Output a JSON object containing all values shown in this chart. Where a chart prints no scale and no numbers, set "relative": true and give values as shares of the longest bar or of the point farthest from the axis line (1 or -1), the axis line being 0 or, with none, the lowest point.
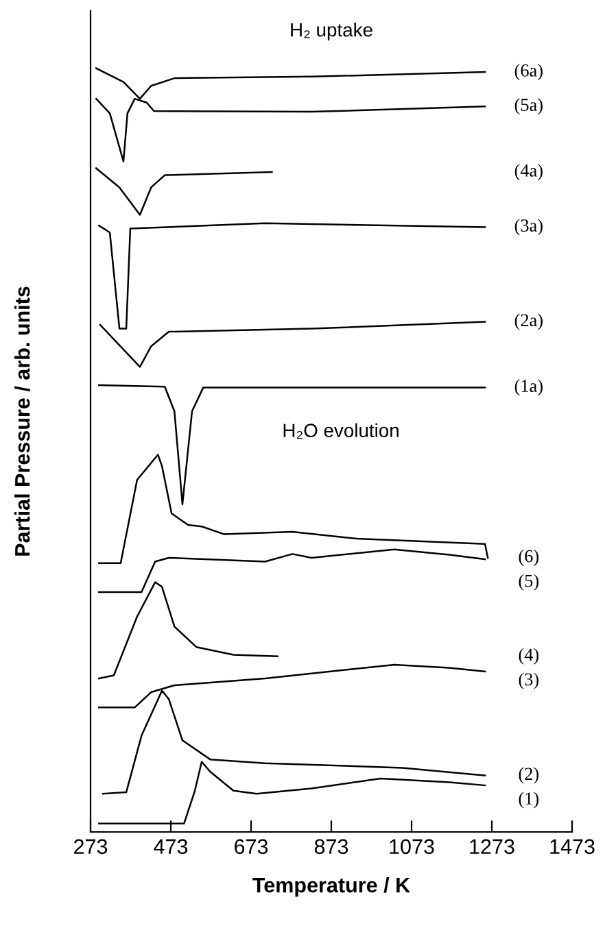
{
  "chart_data": {
    "type": "line",
    "relative": true,
    "xlabel": "Temperature / K",
    "ylabel": "Partial Pressure / arb. units",
    "xlim": [
      273,
      1473
    ],
    "xticks": [
      273,
      473,
      673,
      873,
      1073,
      1273,
      1473
    ],
    "grid": false,
    "legend": false,
    "marker": "none",
    "line_style": "solid",
    "annotations": [
      "H₂ uptake",
      "H₂O evolution"
    ],
    "series": [
      {
        "name": "(6a)",
        "color": "#000000",
        "x": [
          287,
          355,
          396,
          424,
          482,
          824,
          1256
        ],
        "values": [
          1.0,
          0.982,
          0.96,
          0.977,
          0.987,
          0.989,
          0.995
        ]
      },
      {
        "name": "(5a)",
        "color": "#000000",
        "x": [
          287,
          321,
          355,
          365,
          383,
          413,
          431,
          824,
          1256
        ],
        "values": [
          0.96,
          0.941,
          0.878,
          0.941,
          0.96,
          0.955,
          0.944,
          0.943,
          0.95
        ]
      },
      {
        "name": "(4a)",
        "color": "#000000",
        "x": [
          287,
          345,
          396,
          424,
          458,
          725
        ],
        "values": [
          0.869,
          0.844,
          0.808,
          0.844,
          0.86,
          0.864
        ]
      },
      {
        "name": "(3a)",
        "color": "#000000",
        "x": [
          294,
          321,
          345,
          362,
          372,
          708,
          1256
        ],
        "values": [
          0.794,
          0.785,
          0.659,
          0.659,
          0.79,
          0.797,
          0.792
        ]
      },
      {
        "name": "(2a)",
        "color": "#000000",
        "x": [
          297,
          396,
          424,
          468,
          824,
          1256
        ],
        "values": [
          0.664,
          0.609,
          0.636,
          0.655,
          0.659,
          0.668
        ]
      },
      {
        "name": "(1a)",
        "color": "#000000",
        "x": [
          294,
          458,
          482,
          502,
          526,
          554,
          1256
        ],
        "values": [
          0.585,
          0.583,
          0.551,
          0.429,
          0.551,
          0.582,
          0.582
        ]
      },
      {
        "name": "(6)",
        "color": "#000000",
        "x": [
          294,
          348,
          389,
          441,
          451,
          475,
          516,
          550,
          605,
          776,
          937,
          1256,
          1263
        ],
        "values": [
          0.352,
          0.352,
          0.461,
          0.494,
          0.479,
          0.417,
          0.402,
          0.4,
          0.39,
          0.393,
          0.384,
          0.377,
          0.359
        ]
      },
      {
        "name": "(5)",
        "color": "#000000",
        "x": [
          294,
          400,
          434,
          468,
          708,
          776,
          824,
          1030,
          1167,
          1256
        ],
        "values": [
          0.314,
          0.314,
          0.354,
          0.359,
          0.354,
          0.364,
          0.359,
          0.37,
          0.363,
          0.357
        ]
      },
      {
        "name": "(4)",
        "color": "#000000",
        "x": [
          294,
          331,
          389,
          434,
          451,
          482,
          537,
          629,
          739
        ],
        "values": [
          0.201,
          0.205,
          0.282,
          0.327,
          0.321,
          0.269,
          0.242,
          0.232,
          0.23
        ]
      },
      {
        "name": "(3)",
        "color": "#000000",
        "x": [
          294,
          383,
          424,
          482,
          708,
          1030,
          1167,
          1256
        ],
        "values": [
          0.163,
          0.163,
          0.183,
          0.192,
          0.201,
          0.219,
          0.215,
          0.21
        ]
      },
      {
        "name": "(2)",
        "color": "#000000",
        "x": [
          304,
          362,
          400,
          451,
          468,
          502,
          571,
          708,
          1050,
          1256
        ],
        "values": [
          0.05,
          0.052,
          0.126,
          0.185,
          0.174,
          0.12,
          0.095,
          0.09,
          0.084,
          0.074
        ]
      },
      {
        "name": "(1)",
        "color": "#000000",
        "x": [
          294,
          506,
          533,
          550,
          571,
          629,
          687,
          824,
          996,
          1167,
          1256
        ],
        "values": [
          0.011,
          0.011,
          0.054,
          0.092,
          0.079,
          0.054,
          0.05,
          0.057,
          0.07,
          0.065,
          0.061
        ]
      }
    ]
  }
}
